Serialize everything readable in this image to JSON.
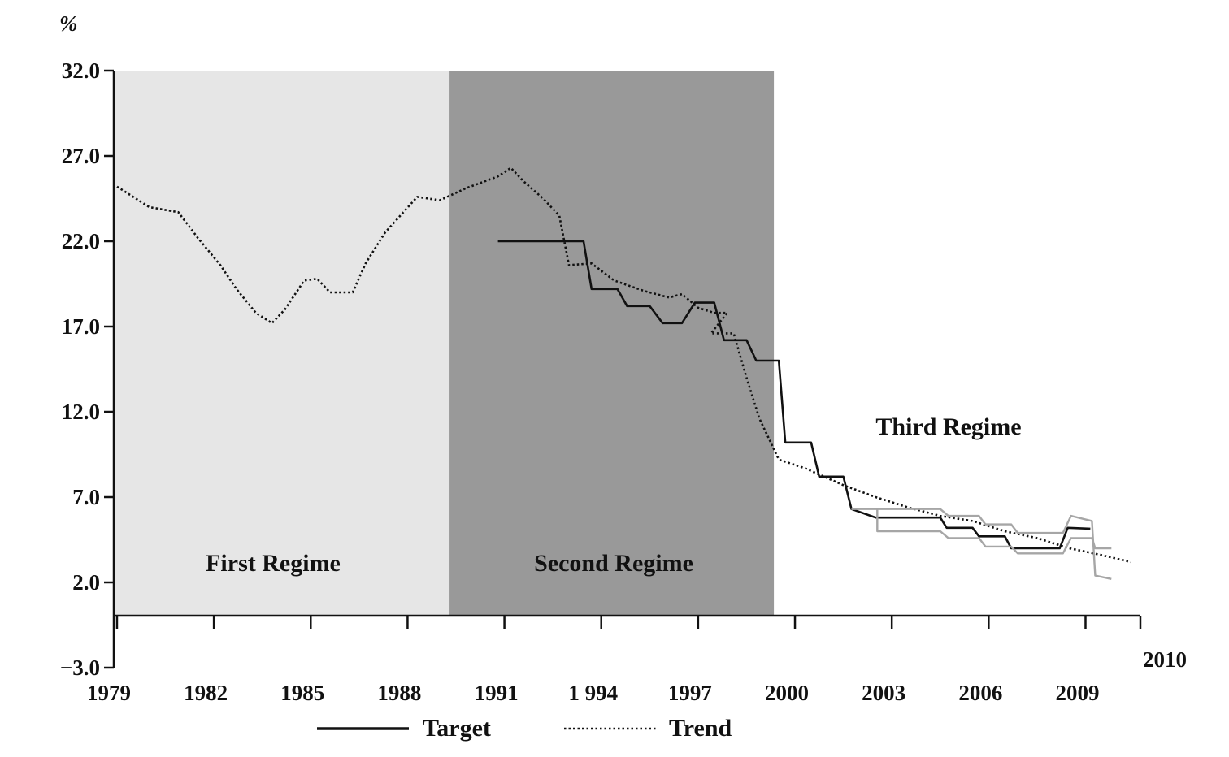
{
  "chart_data": {
    "type": "line",
    "ylabel": "%",
    "ylim": [
      -3.0,
      32.0
    ],
    "xlim": [
      1978.9,
      2010.7
    ],
    "y_ticks": [
      "32.0",
      "27.0",
      "22.0",
      "17.0",
      "12.0",
      "7.0",
      "2.0",
      "-3.0"
    ],
    "x_ticks": [
      "1979",
      "1982",
      "1985",
      "1988",
      "1991",
      "1 994",
      "1997",
      "2000",
      "2003",
      "2006",
      "2009"
    ],
    "extra_x_label": "2010",
    "regions": [
      {
        "label": "First Regime",
        "x_start": 1978.9,
        "x_end": 1989.3,
        "shade": "#e6e6e6"
      },
      {
        "label": "Second Regime",
        "x_start": 1989.3,
        "x_end": 1999.35,
        "shade": "#999999"
      },
      {
        "label": "Third Regime",
        "x_start": 1999.35,
        "x_end": 2010.7,
        "shade": "#ffffff"
      }
    ],
    "series": [
      {
        "name": "Target",
        "style": "solid",
        "color": "#111111",
        "points": [
          [
            1990.8,
            22.0
          ],
          [
            1993.45,
            22.0
          ],
          [
            1993.7,
            19.2
          ],
          [
            1994.5,
            19.2
          ],
          [
            1994.8,
            18.2
          ],
          [
            1995.5,
            18.2
          ],
          [
            1995.9,
            17.2
          ],
          [
            1996.5,
            17.2
          ],
          [
            1996.9,
            18.4
          ],
          [
            1997.5,
            18.4
          ],
          [
            1997.8,
            16.2
          ],
          [
            1998.5,
            16.2
          ],
          [
            1998.8,
            15.0
          ],
          [
            1999.5,
            15.0
          ],
          [
            1999.7,
            10.2
          ],
          [
            2000.5,
            10.2
          ],
          [
            2000.75,
            8.2
          ],
          [
            2001.5,
            8.2
          ],
          [
            2001.75,
            6.3
          ],
          [
            2002.5,
            5.8
          ],
          [
            2004.5,
            5.8
          ],
          [
            2004.7,
            5.2
          ],
          [
            2005.5,
            5.2
          ],
          [
            2005.7,
            4.7
          ],
          [
            2006.5,
            4.7
          ],
          [
            2006.7,
            4.0
          ],
          [
            2008.2,
            4.0
          ],
          [
            2008.45,
            5.2
          ],
          [
            2009.15,
            5.15
          ]
        ]
      },
      {
        "name": "Trend",
        "style": "dotted",
        "color": "#111111",
        "points": [
          [
            1979.0,
            25.2
          ],
          [
            1980.0,
            24.0
          ],
          [
            1980.9,
            23.7
          ],
          [
            1981.5,
            22.2
          ],
          [
            1982.2,
            20.6
          ],
          [
            1982.7,
            19.2
          ],
          [
            1983.3,
            17.8
          ],
          [
            1983.8,
            17.2
          ],
          [
            1984.2,
            18.0
          ],
          [
            1984.8,
            19.7
          ],
          [
            1985.2,
            19.8
          ],
          [
            1985.6,
            19.0
          ],
          [
            1986.3,
            19.0
          ],
          [
            1986.7,
            20.7
          ],
          [
            1987.3,
            22.5
          ],
          [
            1988.3,
            24.6
          ],
          [
            1989.0,
            24.4
          ],
          [
            1989.8,
            25.1
          ],
          [
            1990.8,
            25.8
          ],
          [
            1991.2,
            26.3
          ],
          [
            1991.6,
            25.5
          ],
          [
            1992.2,
            24.5
          ],
          [
            1992.7,
            23.5
          ],
          [
            1993.0,
            20.6
          ],
          [
            1993.7,
            20.7
          ],
          [
            1994.4,
            19.7
          ],
          [
            1995.3,
            19.1
          ],
          [
            1996.1,
            18.7
          ],
          [
            1996.5,
            18.9
          ],
          [
            1997.0,
            18.1
          ],
          [
            1997.5,
            17.8
          ],
          [
            1997.9,
            17.8
          ],
          [
            1997.4,
            16.6
          ],
          [
            1998.1,
            16.6
          ],
          [
            1998.5,
            14.0
          ],
          [
            1998.9,
            11.6
          ],
          [
            1999.5,
            9.2
          ],
          [
            2000.3,
            8.7
          ],
          [
            2001.5,
            7.7
          ],
          [
            2002.5,
            7.0
          ],
          [
            2003.5,
            6.4
          ],
          [
            2004.5,
            5.9
          ],
          [
            2005.5,
            5.6
          ],
          [
            2006.5,
            5.0
          ],
          [
            2007.5,
            4.6
          ],
          [
            2008.5,
            4.0
          ],
          [
            2009.5,
            3.6
          ],
          [
            2010.4,
            3.2
          ]
        ]
      },
      {
        "name": "",
        "style": "solid",
        "color": "#a6a6a6",
        "points": [
          [
            2001.75,
            6.3
          ],
          [
            2004.5,
            6.3
          ],
          [
            2004.75,
            5.9
          ],
          [
            2005.7,
            5.9
          ],
          [
            2005.9,
            5.4
          ],
          [
            2006.7,
            5.4
          ],
          [
            2006.9,
            4.9
          ],
          [
            2008.3,
            4.9
          ],
          [
            2008.55,
            5.9
          ],
          [
            2009.2,
            5.6
          ],
          [
            2009.3,
            2.4
          ],
          [
            2009.8,
            2.2
          ]
        ]
      },
      {
        "name": "",
        "style": "solid",
        "color": "#a6a6a6",
        "points": [
          [
            2002.55,
            6.3
          ],
          [
            2002.55,
            5.0
          ],
          [
            2004.5,
            5.0
          ],
          [
            2004.75,
            4.6
          ],
          [
            2005.7,
            4.6
          ],
          [
            2005.9,
            4.1
          ],
          [
            2006.7,
            4.1
          ],
          [
            2006.9,
            3.7
          ],
          [
            2008.3,
            3.7
          ],
          [
            2008.55,
            4.6
          ],
          [
            2009.2,
            4.6
          ],
          [
            2009.3,
            4.0
          ],
          [
            2009.8,
            4.0
          ]
        ]
      }
    ],
    "legend": {
      "placement": "bottom",
      "entries": [
        "Target",
        "Trend"
      ]
    }
  }
}
